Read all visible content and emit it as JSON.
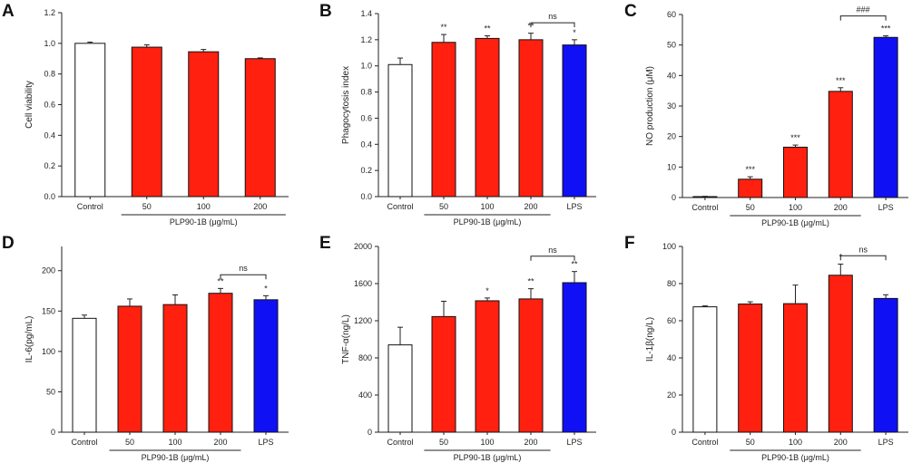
{
  "colors": {
    "control": "#ffffff",
    "plp": "#ff2010",
    "lps": "#1010f5",
    "outline": "#111111"
  },
  "chart_data": [
    {
      "panel": "A",
      "type": "bar",
      "ylabel": "Cell viability",
      "ylim": [
        0,
        1.2
      ],
      "yticks": [
        "0.0",
        "0.2",
        "0.4",
        "0.6",
        "0.8",
        "1.0",
        "1.2"
      ],
      "categories": [
        "Control",
        "50",
        "100",
        "200"
      ],
      "values": [
        1.0,
        0.975,
        0.945,
        0.9
      ],
      "errors": [
        0.008,
        0.015,
        0.015,
        0.005
      ],
      "bar_colors": [
        "control",
        "plp",
        "plp",
        "plp"
      ],
      "labels": [
        "",
        "",
        "",
        ""
      ],
      "group_label": "PLP90-1B (μg/mL)",
      "group_range": [
        1,
        3
      ],
      "bracket": null
    },
    {
      "panel": "B",
      "type": "bar",
      "ylabel": "Phagocytosis index",
      "ylim": [
        0,
        1.4
      ],
      "yticks": [
        "0.0",
        "0.2",
        "0.4",
        "0.6",
        "0.8",
        "1.0",
        "1.2",
        "1.4"
      ],
      "categories": [
        "Control",
        "50",
        "100",
        "200",
        "LPS"
      ],
      "values": [
        1.01,
        1.18,
        1.21,
        1.2,
        1.16
      ],
      "errors": [
        0.05,
        0.06,
        0.02,
        0.05,
        0.04
      ],
      "bar_colors": [
        "control",
        "plp",
        "plp",
        "plp",
        "lps"
      ],
      "labels": [
        "",
        "**",
        "**",
        "**",
        "*"
      ],
      "group_label": "PLP90-1B (μg/mL)",
      "group_range": [
        1,
        3
      ],
      "bracket": {
        "from": 3,
        "to": 4,
        "label": "ns",
        "y": 1.33
      }
    },
    {
      "panel": "C",
      "type": "bar",
      "ylabel": "NO production (μM)",
      "ylim": [
        0,
        60
      ],
      "yticks": [
        "0",
        "10",
        "20",
        "30",
        "40",
        "50",
        "60"
      ],
      "categories": [
        "Control",
        "50",
        "100",
        "200",
        "LPS"
      ],
      "values": [
        0.3,
        6,
        16.5,
        34.8,
        52.5
      ],
      "errors": [
        0.1,
        0.8,
        0.7,
        1.2,
        0.5
      ],
      "bar_colors": [
        "control",
        "plp",
        "plp",
        "plp",
        "lps"
      ],
      "labels": [
        "",
        "***",
        "***",
        "***",
        "***"
      ],
      "group_label": "PLP90-1B (μg/mL)",
      "group_range": [
        1,
        3
      ],
      "bracket": {
        "from": 3,
        "to": 4,
        "label": "###",
        "y": 59.5
      }
    },
    {
      "panel": "D",
      "type": "bar",
      "ylabel": "IL-6(pg/mL)",
      "ylim": [
        0,
        230
      ],
      "yticks": [
        "0",
        "50",
        "100",
        "150",
        "200"
      ],
      "categories": [
        "Control",
        "50",
        "100",
        "200",
        "LPS"
      ],
      "values": [
        141,
        156,
        158,
        172,
        164
      ],
      "errors": [
        4,
        9,
        12,
        6,
        5
      ],
      "bar_colors": [
        "control",
        "plp",
        "plp",
        "plp",
        "lps"
      ],
      "labels": [
        "",
        "",
        "",
        "**",
        "*"
      ],
      "group_label": "PLP90-1B (μg/mL)",
      "group_range": [
        1,
        3
      ],
      "bracket": {
        "from": 3,
        "to": 4,
        "label": "ns",
        "y": 195
      }
    },
    {
      "panel": "E",
      "type": "bar",
      "ylabel": "TNF-α(ng/L)",
      "ylim": [
        0,
        2000
      ],
      "yticks": [
        "0",
        "400",
        "800",
        "1200",
        "1600",
        "2000"
      ],
      "categories": [
        "Control",
        "50",
        "100",
        "200",
        "LPS"
      ],
      "values": [
        940,
        1245,
        1415,
        1435,
        1610
      ],
      "errors": [
        190,
        165,
        30,
        110,
        120
      ],
      "bar_colors": [
        "control",
        "plp",
        "plp",
        "plp",
        "lps"
      ],
      "labels": [
        "",
        "",
        "*",
        "**",
        "**"
      ],
      "group_label": "PLP90-1B (μg/mL)",
      "group_range": [
        1,
        3
      ],
      "bracket": {
        "from": 3,
        "to": 4,
        "label": "ns",
        "y": 1895
      }
    },
    {
      "panel": "F",
      "type": "bar",
      "ylabel": "IL-1β(ng/L)",
      "ylim": [
        0,
        100
      ],
      "yticks": [
        "0",
        "20",
        "40",
        "60",
        "80",
        "100"
      ],
      "categories": [
        "Control",
        "50",
        "100",
        "200",
        "LPS"
      ],
      "values": [
        67.5,
        69,
        69.2,
        84.5,
        72
      ],
      "errors": [
        0.5,
        1.2,
        10,
        6,
        2
      ],
      "bar_colors": [
        "control",
        "plp",
        "plp",
        "plp",
        "lps"
      ],
      "labels": [
        "",
        "",
        "",
        "*",
        ""
      ],
      "group_label": "PLP90-1B (μg/mL)",
      "group_range": [
        1,
        3
      ],
      "bracket": {
        "from": 3,
        "to": 4,
        "label": "ns",
        "y": 95
      }
    }
  ]
}
